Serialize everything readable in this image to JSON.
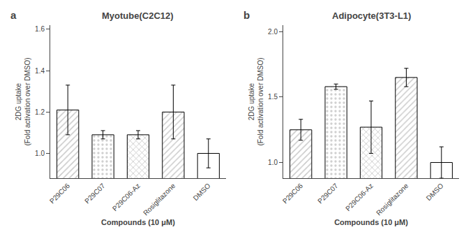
{
  "chart_data": [
    {
      "type": "bar",
      "title": "Myotube(C2C12)",
      "categories": [
        "P29C06",
        "P29C07",
        "P29C06-Az",
        "Rosiglitazone",
        "DMSO"
      ],
      "values": [
        1.21,
        1.09,
        1.09,
        1.2,
        1.0
      ],
      "errors": [
        0.12,
        0.02,
        0.02,
        0.13,
        0.07
      ],
      "colors": [
        "#c8c8c8",
        "#d0d0d0",
        "#c4c4c4",
        "#cccccc",
        "#ffffff"
      ],
      "ylim": [
        0.88,
        1.62
      ],
      "yticks": [
        {
          "value": 1.0,
          "label": "1.0"
        },
        1.2,
        1.4,
        1.6
      ],
      "ylabel": "2DG uptake\n(Fold activation over DMSO)",
      "xlabel": "Compounds (10 μM)",
      "annotations": [
        "a"
      ],
      "grid": false
    },
    {
      "type": "bar",
      "title": "Adipocyte(3T3-L1)",
      "categories": [
        "P29C06",
        "P29C07",
        "P29C06-Az",
        "Rosiglitazone",
        "DMSO"
      ],
      "values": [
        1.25,
        1.58,
        1.27,
        1.65,
        1.0
      ],
      "errors": [
        0.08,
        0.02,
        0.2,
        0.07,
        0.12
      ],
      "colors": [
        "#c8c8c8",
        "#d0d0d0",
        "#c4c4c4",
        "#cccccc",
        "#ffffff"
      ],
      "ylim": [
        0.88,
        2.05
      ],
      "yticks": [
        {
          "value": 1.0,
          "label": "1.0"
        },
        1.5,
        {
          "value": 2.0,
          "label": "2.0"
        }
      ],
      "ylabel": "2DG uptake\n(Fold activation over DMSO)",
      "xlabel": "Compounds (10 μM)",
      "annotations": [
        "b"
      ],
      "grid": false
    }
  ]
}
